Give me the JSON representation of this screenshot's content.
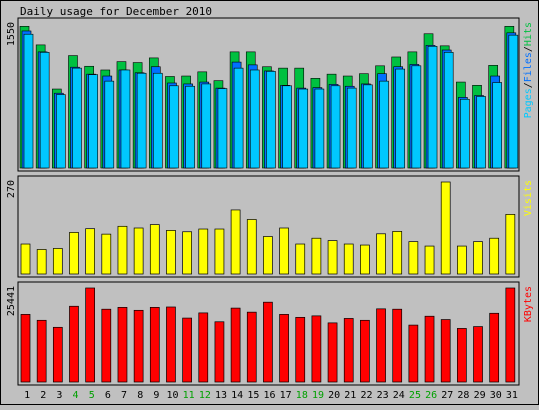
{
  "title": "Daily usage for December 2010",
  "colors": {
    "background": "#c0c0c0",
    "panel_bg": "#c0c0c0",
    "border": "#000000",
    "hits": "#00c040",
    "files": "#0070ff",
    "pages": "#00c8ff",
    "visits": "#ffff00",
    "kbytes": "#ff0000",
    "weekend_label": "#00a000",
    "weekday_label": "#000000"
  },
  "chart_data": [
    {
      "type": "bar",
      "panel": "hits",
      "ytick_label": "1550",
      "ylim": [
        0,
        1550
      ],
      "legend": [
        {
          "name": "Pages",
          "color": "#00c8ff"
        },
        {
          "name": "Files",
          "color": "#0070ff"
        },
        {
          "name": "Hits",
          "color": "#00c040"
        }
      ],
      "legend_separator": "/",
      "categories": [
        "1",
        "2",
        "3",
        "4",
        "5",
        "6",
        "7",
        "8",
        "9",
        "10",
        "11",
        "12",
        "13",
        "14",
        "15",
        "16",
        "17",
        "18",
        "19",
        "20",
        "21",
        "22",
        "23",
        "24",
        "25",
        "26",
        "27",
        "28",
        "29",
        "30",
        "31"
      ],
      "series": [
        {
          "name": "Hits",
          "values": [
            1525,
            1325,
            850,
            1210,
            1095,
            1055,
            1145,
            1135,
            1185,
            985,
            990,
            1035,
            940,
            1250,
            1250,
            1090,
            1075,
            1075,
            965,
            1010,
            990,
            1015,
            1100,
            1195,
            1250,
            1445,
            1315,
            925,
            890,
            1105,
            1525
          ]
        },
        {
          "name": "Files",
          "values": [
            1475,
            1250,
            805,
            1085,
            1010,
            990,
            1055,
            1025,
            1090,
            915,
            905,
            925,
            860,
            1140,
            1110,
            1045,
            890,
            860,
            865,
            900,
            880,
            905,
            1015,
            1090,
            1115,
            1320,
            1270,
            760,
            780,
            990,
            1455
          ]
        },
        {
          "name": "Pages",
          "values": [
            1440,
            1245,
            790,
            1075,
            1005,
            935,
            1055,
            1020,
            1020,
            885,
            880,
            905,
            855,
            1075,
            1055,
            1040,
            885,
            850,
            850,
            885,
            860,
            895,
            935,
            1065,
            1100,
            1310,
            1245,
            740,
            770,
            920,
            1430
          ]
        }
      ]
    },
    {
      "type": "bar",
      "panel": "visits",
      "ytick_label": "270",
      "ylim": [
        0,
        270
      ],
      "legend": [
        {
          "name": "Visits",
          "color": "#ffff00"
        }
      ],
      "categories": [
        "1",
        "2",
        "3",
        "4",
        "5",
        "6",
        "7",
        "8",
        "9",
        "10",
        "11",
        "12",
        "13",
        "14",
        "15",
        "16",
        "17",
        "18",
        "19",
        "20",
        "21",
        "22",
        "23",
        "24",
        "25",
        "26",
        "27",
        "28",
        "29",
        "30",
        "31"
      ],
      "series": [
        {
          "name": "Visits",
          "values": [
            88,
            72,
            75,
            122,
            133,
            117,
            140,
            135,
            145,
            128,
            124,
            132,
            132,
            188,
            160,
            110,
            135,
            88,
            105,
            98,
            88,
            85,
            118,
            125,
            95,
            82,
            270,
            82,
            95,
            105,
            175
          ]
        }
      ]
    },
    {
      "type": "bar",
      "panel": "kbytes",
      "ytick_label": "25441",
      "ylim": [
        0,
        25441
      ],
      "legend": [
        {
          "name": "KBytes",
          "color": "#ff0000"
        }
      ],
      "categories": [
        "1",
        "2",
        "3",
        "4",
        "5",
        "6",
        "7",
        "8",
        "9",
        "10",
        "11",
        "12",
        "13",
        "14",
        "15",
        "16",
        "17",
        "18",
        "19",
        "20",
        "21",
        "22",
        "23",
        "24",
        "25",
        "26",
        "27",
        "28",
        "29",
        "30",
        "31"
      ],
      "series": [
        {
          "name": "KBytes",
          "values": [
            18300,
            16700,
            14800,
            20500,
            25441,
            19700,
            20200,
            19400,
            20200,
            20300,
            17300,
            18700,
            16300,
            20000,
            18900,
            21600,
            18300,
            17500,
            17900,
            16000,
            17200,
            16700,
            19800,
            19700,
            15400,
            17800,
            16900,
            14500,
            15000,
            18600,
            25441
          ]
        }
      ]
    }
  ],
  "x_axis": {
    "labels": [
      "1",
      "2",
      "3",
      "4",
      "5",
      "6",
      "7",
      "8",
      "9",
      "10",
      "11",
      "12",
      "13",
      "14",
      "15",
      "16",
      "17",
      "18",
      "19",
      "20",
      "21",
      "22",
      "23",
      "24",
      "25",
      "26",
      "27",
      "28",
      "29",
      "30",
      "31"
    ],
    "weekend": [
      4,
      5,
      11,
      12,
      18,
      19,
      25,
      26
    ]
  }
}
